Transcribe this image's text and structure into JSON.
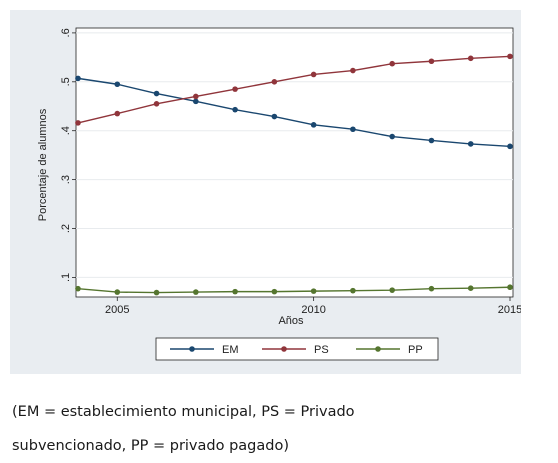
{
  "chart_data": {
    "type": "line",
    "xlabel": "Años",
    "ylabel": "Porcentaje de alumnos",
    "xlim": [
      2004,
      2015
    ],
    "ylim": [
      0.06,
      0.61
    ],
    "x_ticks": [
      2005,
      2010,
      2015
    ],
    "x_tick_labels": [
      "2005",
      "2010",
      "2015"
    ],
    "y_ticks": [
      0.1,
      0.2,
      0.3,
      0.4,
      0.5,
      0.6
    ],
    "y_tick_labels": [
      ".1",
      ".2",
      ".3",
      ".4",
      ".5",
      ".6"
    ],
    "grid": true,
    "legend_position": "bottom",
    "x": [
      2004,
      2005,
      2006,
      2007,
      2008,
      2009,
      2010,
      2011,
      2012,
      2013,
      2014,
      2015
    ],
    "series": [
      {
        "name": "EM",
        "color": "#1a476f",
        "values": [
          0.507,
          0.495,
          0.476,
          0.46,
          0.443,
          0.429,
          0.412,
          0.403,
          0.388,
          0.38,
          0.373,
          0.368
        ]
      },
      {
        "name": "PS",
        "color": "#90353b",
        "values": [
          0.416,
          0.435,
          0.455,
          0.47,
          0.485,
          0.5,
          0.515,
          0.523,
          0.537,
          0.542,
          0.548,
          0.552
        ]
      },
      {
        "name": "PP",
        "color": "#55752f",
        "values": [
          0.077,
          0.07,
          0.069,
          0.07,
          0.071,
          0.071,
          0.072,
          0.073,
          0.074,
          0.077,
          0.078,
          0.08
        ]
      }
    ]
  },
  "caption": {
    "line1": "(EM = establecimiento municipal, PS = Privado",
    "line2": "subvencionado, PP = privado pagado)"
  }
}
